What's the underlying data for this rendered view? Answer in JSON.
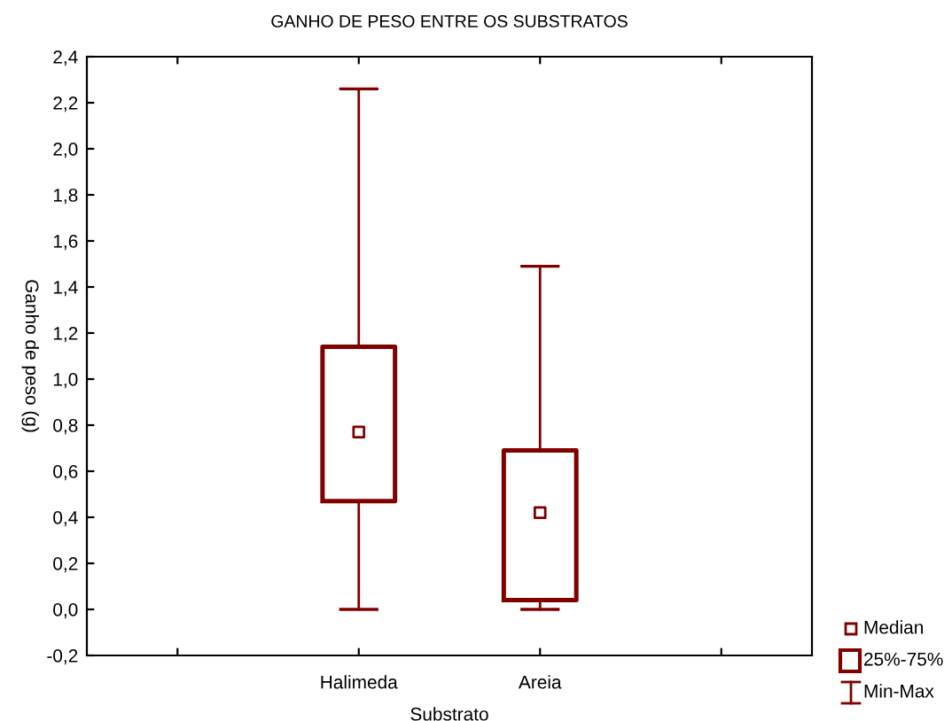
{
  "chart_data": {
    "type": "box",
    "title": "GANHO DE PESO ENTRE OS SUBSTRATOS",
    "xlabel": "Substrato",
    "ylabel": "Ganho de peso (g)",
    "categories": [
      "Halimeda",
      "Areia"
    ],
    "series": [
      {
        "color": "#800000",
        "boxes": [
          {
            "low": 0.0,
            "q1": 0.47,
            "median": 0.77,
            "q3": 1.14,
            "high": 2.26
          },
          {
            "low": 0.0,
            "q1": 0.04,
            "median": 0.42,
            "q3": 0.69,
            "high": 1.49
          }
        ]
      }
    ],
    "ylim": [
      -0.2,
      2.4
    ],
    "yticks": [
      {
        "value": -0.2,
        "label": "-0,2"
      },
      {
        "value": 0.0,
        "label": "0,0"
      },
      {
        "value": 0.2,
        "label": "0,2"
      },
      {
        "value": 0.4,
        "label": "0,4"
      },
      {
        "value": 0.6,
        "label": "0,6"
      },
      {
        "value": 0.8,
        "label": "0,8"
      },
      {
        "value": 1.0,
        "label": "1,0"
      },
      {
        "value": 1.2,
        "label": "1,2"
      },
      {
        "value": 1.4,
        "label": "1,4"
      },
      {
        "value": 1.6,
        "label": "1,6"
      },
      {
        "value": 1.8,
        "label": "1,8"
      },
      {
        "value": 2.0,
        "label": "2,0"
      },
      {
        "value": 2.2,
        "label": "2,2"
      },
      {
        "value": 2.4,
        "label": "2,4"
      }
    ],
    "grid": false,
    "marker": "square",
    "annotations": [
      "Median",
      "25%-75%",
      "Min-Max"
    ]
  }
}
